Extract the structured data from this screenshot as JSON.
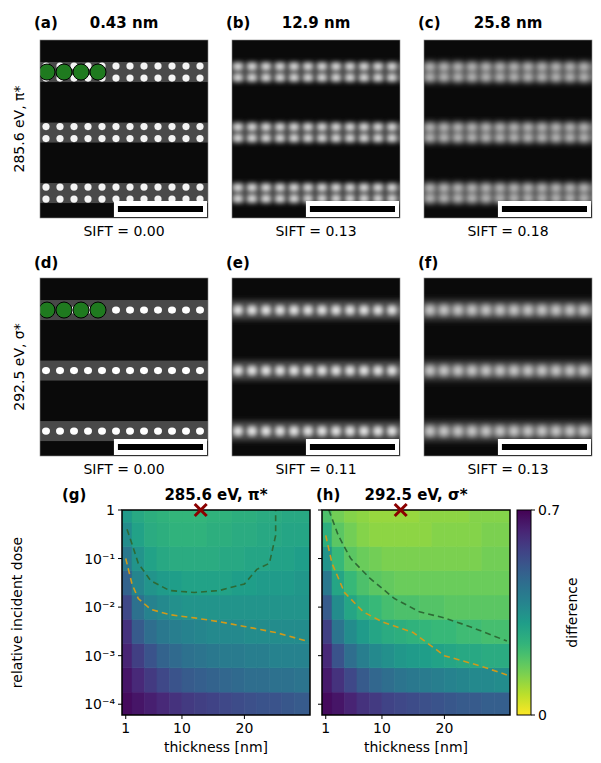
{
  "image_grid": {
    "columns": [
      "0.43 nm",
      "12.9 nm",
      "25.8 nm"
    ],
    "rows": [
      {
        "label": "285.6 eV, π*",
        "letters": [
          "(a)",
          "(b)",
          "(c)"
        ],
        "sift": [
          "SIFT = 0.00",
          "SIFT = 0.13",
          "SIFT = 0.18"
        ]
      },
      {
        "label": "292.5 eV, σ*",
        "letters": [
          "(d)",
          "(e)",
          "(f)"
        ],
        "sift": [
          "SIFT = 0.00",
          "SIFT = 0.11",
          "SIFT = 0.13"
        ]
      }
    ]
  },
  "chart_data": [
    {
      "type": "heatmap",
      "letter": "(g)",
      "title": "285.6 eV, π*",
      "xlabel": "thickness [nm]",
      "ylabel": "relative incident dose",
      "log": "y",
      "xlim": [
        0.4,
        30.5
      ],
      "ylim": [
        6e-05,
        1
      ],
      "xticks": [
        1,
        10,
        20
      ],
      "yticks": [
        {
          "value": 0.0001,
          "label": "10⁻⁴"
        },
        {
          "value": 0.001,
          "label": "10⁻³"
        },
        {
          "value": 0.01,
          "label": "10⁻²"
        },
        {
          "value": 0.1,
          "label": "10⁻¹"
        },
        1
      ],
      "x": [
        1,
        3,
        5,
        7,
        9,
        11,
        13,
        15,
        17,
        19,
        21,
        23,
        25,
        27,
        29
      ],
      "y": [
        0.0001,
        0.000316,
        0.001,
        0.00316,
        0.01,
        0.0316,
        0.1,
        0.316,
        1
      ],
      "cells": [
        [
          0.68,
          0.66,
          0.64,
          0.62,
          0.6,
          0.58,
          0.57,
          0.56,
          0.55,
          0.54,
          0.53,
          0.52,
          0.52,
          0.51,
          0.5
        ],
        [
          0.66,
          0.62,
          0.58,
          0.55,
          0.52,
          0.5,
          0.49,
          0.48,
          0.47,
          0.46,
          0.45,
          0.45,
          0.44,
          0.44,
          0.43
        ],
        [
          0.63,
          0.57,
          0.52,
          0.48,
          0.46,
          0.44,
          0.43,
          0.42,
          0.41,
          0.41,
          0.4,
          0.4,
          0.39,
          0.39,
          0.39
        ],
        [
          0.6,
          0.5,
          0.45,
          0.42,
          0.4,
          0.39,
          0.38,
          0.37,
          0.37,
          0.37,
          0.36,
          0.36,
          0.36,
          0.36,
          0.36
        ],
        [
          0.55,
          0.44,
          0.39,
          0.37,
          0.35,
          0.34,
          0.34,
          0.34,
          0.34,
          0.34,
          0.34,
          0.34,
          0.34,
          0.34,
          0.34
        ],
        [
          0.48,
          0.38,
          0.34,
          0.32,
          0.31,
          0.3,
          0.3,
          0.3,
          0.3,
          0.31,
          0.31,
          0.32,
          0.32,
          0.32,
          0.33
        ],
        [
          0.42,
          0.34,
          0.3,
          0.28,
          0.27,
          0.27,
          0.27,
          0.27,
          0.28,
          0.28,
          0.29,
          0.29,
          0.3,
          0.3,
          0.31
        ],
        [
          0.36,
          0.3,
          0.27,
          0.26,
          0.25,
          0.25,
          0.25,
          0.26,
          0.26,
          0.27,
          0.27,
          0.28,
          0.28,
          0.29,
          0.29
        ],
        [
          0.32,
          0.28,
          0.26,
          0.25,
          0.24,
          0.24,
          0.24,
          0.25,
          0.25,
          0.26,
          0.26,
          0.27,
          0.27,
          0.28,
          0.28
        ]
      ],
      "contours": [
        {
          "color": "#2d6a35",
          "line_style": "dashed",
          "x": [
            1.2,
            2,
            3,
            5,
            8,
            12,
            16,
            20,
            22,
            24,
            25,
            25
          ],
          "y": [
            0.4,
            0.2,
            0.08,
            0.035,
            0.022,
            0.02,
            0.022,
            0.03,
            0.06,
            0.08,
            0.3,
            1
          ]
        },
        {
          "color": "#d09a1a",
          "line_style": "dashed",
          "x": [
            1,
            2,
            3,
            5,
            8,
            12,
            16,
            20,
            25,
            30
          ],
          "y": [
            0.1,
            0.03,
            0.015,
            0.009,
            0.007,
            0.006,
            0.005,
            0.004,
            0.003,
            0.002
          ]
        }
      ],
      "annotations": [
        {
          "x": 13,
          "y": 1,
          "marker": "x",
          "color": "#8b0000"
        }
      ]
    },
    {
      "type": "heatmap",
      "letter": "(h)",
      "title": "292.5 eV, σ*",
      "xlabel": "thickness [nm]",
      "log": "y",
      "tick_labels": "x",
      "xlim": [
        0.4,
        30.5
      ],
      "ylim": [
        6e-05,
        1
      ],
      "xticks": [
        1,
        10,
        20
      ],
      "yticks": [
        0.0001,
        0.001,
        0.01,
        0.1,
        1
      ],
      "x": [
        1,
        3,
        5,
        7,
        9,
        11,
        13,
        15,
        17,
        19,
        21,
        23,
        25,
        27,
        29
      ],
      "y": [
        0.0001,
        0.000316,
        0.001,
        0.00316,
        0.01,
        0.0316,
        0.1,
        0.316,
        1
      ],
      "cells": [
        [
          0.68,
          0.66,
          0.63,
          0.6,
          0.58,
          0.56,
          0.55,
          0.54,
          0.53,
          0.52,
          0.51,
          0.5,
          0.5,
          0.49,
          0.49
        ],
        [
          0.65,
          0.6,
          0.55,
          0.5,
          0.47,
          0.45,
          0.43,
          0.42,
          0.41,
          0.4,
          0.39,
          0.38,
          0.37,
          0.37,
          0.36
        ],
        [
          0.62,
          0.52,
          0.45,
          0.4,
          0.37,
          0.35,
          0.33,
          0.32,
          0.31,
          0.3,
          0.29,
          0.28,
          0.28,
          0.27,
          0.27
        ],
        [
          0.57,
          0.43,
          0.36,
          0.32,
          0.29,
          0.27,
          0.26,
          0.25,
          0.24,
          0.23,
          0.23,
          0.22,
          0.22,
          0.21,
          0.21
        ],
        [
          0.5,
          0.36,
          0.29,
          0.25,
          0.23,
          0.21,
          0.2,
          0.2,
          0.19,
          0.19,
          0.18,
          0.18,
          0.18,
          0.18,
          0.18
        ],
        [
          0.42,
          0.29,
          0.23,
          0.2,
          0.18,
          0.17,
          0.16,
          0.16,
          0.16,
          0.16,
          0.16,
          0.16,
          0.16,
          0.16,
          0.16
        ],
        [
          0.34,
          0.23,
          0.18,
          0.16,
          0.15,
          0.14,
          0.14,
          0.14,
          0.14,
          0.14,
          0.14,
          0.14,
          0.14,
          0.15,
          0.15
        ],
        [
          0.26,
          0.18,
          0.15,
          0.13,
          0.12,
          0.12,
          0.12,
          0.12,
          0.12,
          0.13,
          0.13,
          0.13,
          0.13,
          0.14,
          0.14
        ],
        [
          0.2,
          0.15,
          0.13,
          0.12,
          0.11,
          0.11,
          0.11,
          0.11,
          0.12,
          0.12,
          0.12,
          0.12,
          0.13,
          0.13,
          0.13
        ]
      ],
      "contours": [
        {
          "color": "#2d6a35",
          "line_style": "dashed",
          "x": [
            1.5,
            3,
            5,
            8,
            12,
            16,
            20,
            24,
            30
          ],
          "y": [
            1,
            0.3,
            0.1,
            0.04,
            0.015,
            0.008,
            0.006,
            0.004,
            0.002
          ]
        },
        {
          "color": "#d09a1a",
          "line_style": "dashed",
          "x": [
            1,
            2,
            4,
            7,
            10,
            15,
            20,
            26,
            30
          ],
          "y": [
            0.3,
            0.08,
            0.02,
            0.008,
            0.005,
            0.003,
            0.001,
            0.0006,
            0.0004
          ]
        }
      ],
      "annotations": [
        {
          "x": 13,
          "y": 1,
          "marker": "x",
          "color": "#8b0000"
        }
      ],
      "colorbar": {
        "label": "difference",
        "range": [
          0,
          0.7
        ],
        "ticks": [
          0,
          0.7
        ]
      }
    }
  ]
}
